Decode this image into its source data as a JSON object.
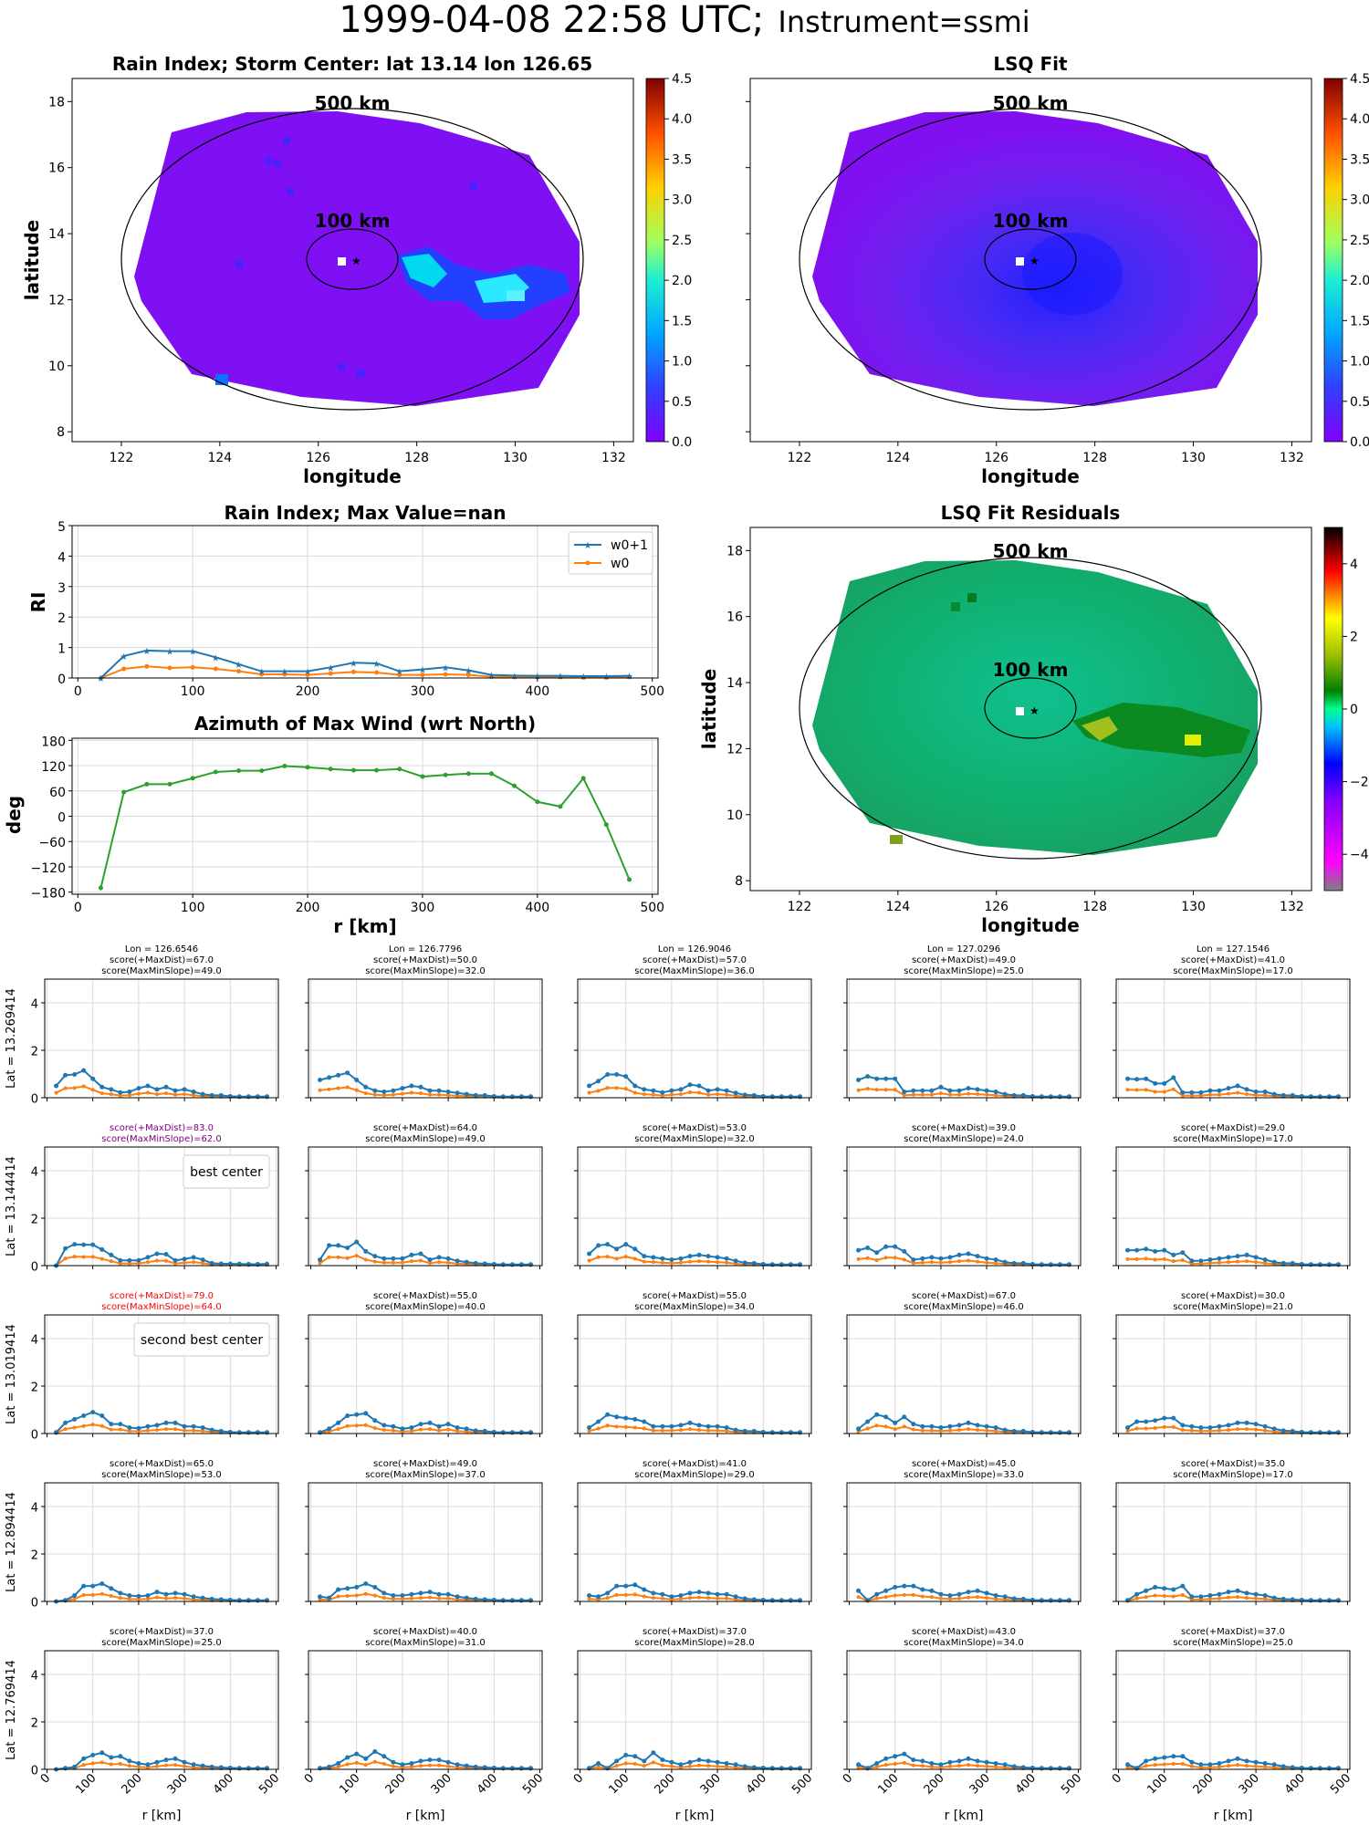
{
  "suptitle": {
    "main": "1999-04-08 22:58 UTC;",
    "sub": "Instrument=ssmi"
  },
  "colors": {
    "w0p1": "#1f77b4",
    "w0": "#ff7f0e",
    "azimuth": "#2ca02c",
    "grid": "#d9d9d9",
    "purple": "#800080",
    "red": "#ff0000"
  },
  "chart_data": [
    {
      "type": "heatmap",
      "title": "Rain Index; Storm Center: lat 13.14 lon 126.65",
      "xlabel": "longitude",
      "ylabel": "latitude",
      "xlim": [
        121,
        132.4
      ],
      "ylim": [
        7.7,
        18.7
      ],
      "xticks": [
        "122",
        "124",
        "126",
        "128",
        "130",
        "132"
      ],
      "yticks": [
        "8",
        "10",
        "12",
        "14",
        "16",
        "18"
      ],
      "colorbar": {
        "min": 0,
        "max": 4.5,
        "ticks": [
          "0.0",
          "0.5",
          "1.0",
          "1.5",
          "2.0",
          "2.5",
          "3.0",
          "3.5",
          "4.0",
          "4.5"
        ],
        "colormap": "rainbow"
      },
      "rings": [
        {
          "label": "500 km",
          "radius_km": 500
        },
        {
          "label": "100 km",
          "radius_km": 100
        }
      ],
      "center": {
        "lat": 13.14,
        "lon": 126.65
      },
      "rain_band": [
        {
          "lon": 127.5,
          "lat": 12.9,
          "value": 1.6
        },
        {
          "lon": 128.0,
          "lat": 12.4,
          "value": 1.3
        },
        {
          "lon": 128.8,
          "lat": 12.0,
          "value": 1.4
        },
        {
          "lon": 129.5,
          "lat": 12.4,
          "value": 1.2
        },
        {
          "lon": 124.3,
          "lat": 9.5,
          "value": 1.0
        }
      ]
    },
    {
      "type": "heatmap",
      "title": "LSQ Fit",
      "xlabel": "longitude",
      "xlim": [
        121,
        132.4
      ],
      "ylim": [
        7.7,
        18.7
      ],
      "xticks": [
        "122",
        "124",
        "126",
        "128",
        "130",
        "132"
      ],
      "colorbar": {
        "min": 0,
        "max": 4.5,
        "ticks": [
          "0.0",
          "0.5",
          "1.0",
          "1.5",
          "2.0",
          "2.5",
          "3.0",
          "3.5",
          "4.0",
          "4.5"
        ],
        "colormap": "rainbow"
      },
      "rings": [
        {
          "label": "500 km",
          "radius_km": 500
        },
        {
          "label": "100 km",
          "radius_km": 100
        }
      ],
      "center": {
        "lat": 13.14,
        "lon": 126.65
      }
    },
    {
      "type": "line",
      "title": "Rain Index; Max Value=nan",
      "ylabel": "RI",
      "xlim": [
        -5,
        505
      ],
      "ylim": [
        0,
        5
      ],
      "xticks": [
        0,
        100,
        200,
        300,
        400,
        500
      ],
      "yticks": [
        0,
        1,
        2,
        3,
        4,
        5
      ],
      "x": [
        20,
        40,
        60,
        80,
        100,
        120,
        140,
        160,
        180,
        200,
        220,
        240,
        260,
        280,
        300,
        320,
        340,
        360,
        380,
        400,
        420,
        440,
        460,
        480
      ],
      "series": [
        {
          "name": "w0+1",
          "marker": "star",
          "values": [
            0.0,
            0.72,
            0.9,
            0.88,
            0.88,
            0.68,
            0.45,
            0.22,
            0.22,
            0.22,
            0.35,
            0.5,
            0.48,
            0.22,
            0.28,
            0.35,
            0.25,
            0.1,
            0.08,
            0.07,
            0.07,
            0.06,
            0.06,
            0.07
          ]
        },
        {
          "name": "w0",
          "marker": "dot",
          "values": [
            0.0,
            0.3,
            0.38,
            0.33,
            0.35,
            0.3,
            0.22,
            0.12,
            0.12,
            0.1,
            0.15,
            0.2,
            0.18,
            0.1,
            0.1,
            0.12,
            0.1,
            0.04,
            0.03,
            0.03,
            0.03,
            0.02,
            0.02,
            0.03
          ]
        }
      ],
      "legend": "top-right"
    },
    {
      "type": "heatmap",
      "title": "LSQ Fit Residuals",
      "xlabel": "longitude",
      "ylabel": "latitude",
      "xlim": [
        121,
        132.4
      ],
      "ylim": [
        7.7,
        18.7
      ],
      "xticks": [
        "122",
        "124",
        "126",
        "128",
        "130",
        "132"
      ],
      "yticks": [
        "8",
        "10",
        "12",
        "14",
        "16",
        "18"
      ],
      "colorbar": {
        "min": -5,
        "max": 5,
        "ticks": [
          "4",
          "2",
          "0",
          "−2",
          "−4"
        ],
        "colormap": "residual"
      },
      "rings": [
        {
          "label": "500 km",
          "radius_km": 500
        },
        {
          "label": "100 km",
          "radius_km": 100
        }
      ],
      "center": {
        "lat": 13.14,
        "lon": 126.65
      }
    },
    {
      "type": "line",
      "title": "Azimuth of Max Wind (wrt North)",
      "xlabel": "r [km]",
      "ylabel": "deg",
      "xlim": [
        -5,
        505
      ],
      "ylim": [
        -185,
        185
      ],
      "xticks": [
        0,
        100,
        200,
        300,
        400,
        500
      ],
      "yticks": [
        "180",
        "120",
        "60",
        "0",
        "−60",
        "−120",
        "−180"
      ],
      "x": [
        20,
        40,
        60,
        80,
        100,
        120,
        140,
        160,
        180,
        200,
        220,
        240,
        260,
        280,
        300,
        320,
        340,
        360,
        380,
        400,
        420,
        440,
        460,
        480
      ],
      "series": [
        {
          "values": [
            -170,
            57,
            76,
            76,
            90,
            105,
            108,
            108,
            119,
            116,
            112,
            109,
            109,
            112,
            94,
            98,
            101,
            101,
            72,
            34,
            23,
            90,
            -20,
            -150
          ]
        }
      ]
    }
  ],
  "grid": {
    "lons": [
      "Lon = 126.6546",
      "Lon = 126.7796",
      "Lon = 126.9046",
      "Lon = 127.0296",
      "Lon = 127.1546"
    ],
    "lats": [
      "Lat = 13.269414",
      "Lat = 13.144414",
      "Lat = 13.019414",
      "Lat = 12.894414",
      "Lat = 12.769414"
    ],
    "xticks": [
      "0",
      "100",
      "200",
      "300",
      "400",
      "500"
    ],
    "yticks": [
      "0",
      "2",
      "4"
    ],
    "xlabel": "r [km]",
    "ylim": [
      0,
      5
    ],
    "best_label": "best center",
    "second_label": "second best center",
    "scores": [
      [
        "score(+MaxDist)=67.0|score(MaxMinSlope)=49.0",
        "score(+MaxDist)=50.0|score(MaxMinSlope)=32.0",
        "score(+MaxDist)=57.0|score(MaxMinSlope)=36.0",
        "score(+MaxDist)=49.0|score(MaxMinSlope)=25.0",
        "score(+MaxDist)=41.0|score(MaxMinSlope)=17.0"
      ],
      [
        "score(+MaxDist)=83.0|score(MaxMinSlope)=62.0",
        "score(+MaxDist)=64.0|score(MaxMinSlope)=49.0",
        "score(+MaxDist)=53.0|score(MaxMinSlope)=32.0",
        "score(+MaxDist)=39.0|score(MaxMinSlope)=24.0",
        "score(+MaxDist)=29.0|score(MaxMinSlope)=17.0"
      ],
      [
        "score(+MaxDist)=79.0|score(MaxMinSlope)=64.0",
        "score(+MaxDist)=55.0|score(MaxMinSlope)=40.0",
        "score(+MaxDist)=55.0|score(MaxMinSlope)=34.0",
        "score(+MaxDist)=67.0|score(MaxMinSlope)=46.0",
        "score(+MaxDist)=30.0|score(MaxMinSlope)=21.0"
      ],
      [
        "score(+MaxDist)=65.0|score(MaxMinSlope)=53.0",
        "score(+MaxDist)=49.0|score(MaxMinSlope)=37.0",
        "score(+MaxDist)=41.0|score(MaxMinSlope)=29.0",
        "score(+MaxDist)=45.0|score(MaxMinSlope)=33.0",
        "score(+MaxDist)=35.0|score(MaxMinSlope)=17.0"
      ],
      [
        "score(+MaxDist)=37.0|score(MaxMinSlope)=25.0",
        "score(+MaxDist)=40.0|score(MaxMinSlope)=31.0",
        "score(+MaxDist)=37.0|score(MaxMinSlope)=28.0",
        "score(+MaxDist)=43.0|score(MaxMinSlope)=34.0",
        "score(+MaxDist)=37.0|score(MaxMinSlope)=25.0"
      ]
    ],
    "x": [
      20,
      40,
      60,
      80,
      100,
      120,
      140,
      160,
      180,
      200,
      220,
      240,
      260,
      280,
      300,
      320,
      340,
      360,
      380,
      400,
      420,
      440,
      460,
      480
    ],
    "w0p1": [
      [
        [
          0.5,
          0.95,
          0.98,
          1.15,
          0.8,
          0.45,
          0.35,
          0.22,
          0.25,
          0.4,
          0.5,
          0.35,
          0.45,
          0.3,
          0.35,
          0.25,
          0.15,
          0.1,
          0.1,
          0.06,
          0.05,
          0.05,
          0.05,
          0.05
        ],
        [
          0.75,
          0.85,
          0.95,
          1.05,
          0.75,
          0.45,
          0.3,
          0.25,
          0.3,
          0.4,
          0.5,
          0.45,
          0.3,
          0.3,
          0.25,
          0.2,
          0.15,
          0.1,
          0.1,
          0.06,
          0.05,
          0.05,
          0.05,
          0.05
        ],
        [
          0.5,
          0.7,
          0.98,
          0.98,
          0.9,
          0.5,
          0.35,
          0.3,
          0.22,
          0.3,
          0.35,
          0.55,
          0.5,
          0.3,
          0.35,
          0.3,
          0.2,
          0.12,
          0.1,
          0.06,
          0.05,
          0.05,
          0.05,
          0.05
        ],
        [
          0.75,
          0.9,
          0.8,
          0.8,
          0.8,
          0.25,
          0.3,
          0.3,
          0.3,
          0.45,
          0.3,
          0.3,
          0.4,
          0.35,
          0.3,
          0.25,
          0.15,
          0.1,
          0.1,
          0.06,
          0.05,
          0.05,
          0.05,
          0.05
        ],
        [
          0.8,
          0.78,
          0.8,
          0.6,
          0.6,
          0.85,
          0.22,
          0.22,
          0.22,
          0.3,
          0.3,
          0.4,
          0.5,
          0.35,
          0.25,
          0.25,
          0.15,
          0.1,
          0.1,
          0.06,
          0.05,
          0.05,
          0.05,
          0.05
        ]
      ],
      [
        [
          0.0,
          0.72,
          0.9,
          0.88,
          0.88,
          0.68,
          0.45,
          0.22,
          0.22,
          0.22,
          0.35,
          0.5,
          0.48,
          0.22,
          0.28,
          0.35,
          0.25,
          0.1,
          0.08,
          0.07,
          0.07,
          0.06,
          0.06,
          0.07
        ],
        [
          0.25,
          0.85,
          0.85,
          0.75,
          1.0,
          0.6,
          0.4,
          0.3,
          0.3,
          0.3,
          0.45,
          0.5,
          0.25,
          0.35,
          0.3,
          0.2,
          0.15,
          0.1,
          0.08,
          0.06,
          0.05,
          0.05,
          0.05,
          0.05
        ],
        [
          0.5,
          0.85,
          0.9,
          0.7,
          0.9,
          0.7,
          0.4,
          0.35,
          0.3,
          0.25,
          0.3,
          0.4,
          0.45,
          0.4,
          0.35,
          0.3,
          0.2,
          0.12,
          0.1,
          0.06,
          0.05,
          0.05,
          0.05,
          0.05
        ],
        [
          0.65,
          0.75,
          0.55,
          0.8,
          0.8,
          0.6,
          0.25,
          0.3,
          0.35,
          0.3,
          0.35,
          0.45,
          0.5,
          0.4,
          0.3,
          0.25,
          0.15,
          0.1,
          0.1,
          0.06,
          0.05,
          0.05,
          0.05,
          0.05
        ],
        [
          0.65,
          0.65,
          0.7,
          0.6,
          0.65,
          0.45,
          0.55,
          0.2,
          0.2,
          0.25,
          0.3,
          0.35,
          0.4,
          0.45,
          0.35,
          0.25,
          0.15,
          0.1,
          0.1,
          0.06,
          0.05,
          0.05,
          0.05,
          0.05
        ]
      ],
      [
        [
          0.05,
          0.45,
          0.6,
          0.75,
          0.9,
          0.75,
          0.4,
          0.4,
          0.25,
          0.22,
          0.3,
          0.35,
          0.45,
          0.45,
          0.3,
          0.3,
          0.25,
          0.15,
          0.1,
          0.06,
          0.05,
          0.05,
          0.05,
          0.05
        ],
        [
          0.05,
          0.2,
          0.45,
          0.75,
          0.8,
          0.85,
          0.55,
          0.35,
          0.3,
          0.2,
          0.25,
          0.4,
          0.45,
          0.3,
          0.4,
          0.25,
          0.2,
          0.12,
          0.1,
          0.06,
          0.05,
          0.05,
          0.05,
          0.05
        ],
        [
          0.25,
          0.5,
          0.8,
          0.7,
          0.65,
          0.6,
          0.5,
          0.3,
          0.3,
          0.3,
          0.35,
          0.45,
          0.35,
          0.3,
          0.3,
          0.25,
          0.15,
          0.1,
          0.1,
          0.06,
          0.05,
          0.05,
          0.05,
          0.05
        ],
        [
          0.2,
          0.5,
          0.8,
          0.7,
          0.45,
          0.7,
          0.4,
          0.3,
          0.3,
          0.25,
          0.3,
          0.35,
          0.45,
          0.35,
          0.3,
          0.25,
          0.15,
          0.1,
          0.1,
          0.06,
          0.05,
          0.05,
          0.05,
          0.05
        ],
        [
          0.25,
          0.5,
          0.5,
          0.55,
          0.65,
          0.65,
          0.35,
          0.3,
          0.25,
          0.25,
          0.3,
          0.35,
          0.45,
          0.45,
          0.4,
          0.3,
          0.2,
          0.12,
          0.1,
          0.06,
          0.05,
          0.05,
          0.05,
          0.05
        ]
      ],
      [
        [
          0.0,
          0.05,
          0.25,
          0.65,
          0.65,
          0.75,
          0.55,
          0.35,
          0.25,
          0.22,
          0.25,
          0.4,
          0.3,
          0.35,
          0.3,
          0.2,
          0.15,
          0.1,
          0.08,
          0.06,
          0.05,
          0.05,
          0.05,
          0.05
        ],
        [
          0.2,
          0.15,
          0.5,
          0.55,
          0.6,
          0.75,
          0.6,
          0.35,
          0.25,
          0.25,
          0.3,
          0.35,
          0.4,
          0.3,
          0.3,
          0.2,
          0.15,
          0.1,
          0.08,
          0.06,
          0.05,
          0.05,
          0.05,
          0.05
        ],
        [
          0.25,
          0.2,
          0.35,
          0.65,
          0.65,
          0.7,
          0.5,
          0.35,
          0.3,
          0.2,
          0.25,
          0.35,
          0.4,
          0.35,
          0.3,
          0.3,
          0.2,
          0.12,
          0.08,
          0.06,
          0.05,
          0.05,
          0.05,
          0.05
        ],
        [
          0.45,
          0.05,
          0.3,
          0.45,
          0.6,
          0.65,
          0.65,
          0.5,
          0.45,
          0.3,
          0.25,
          0.3,
          0.4,
          0.45,
          0.35,
          0.25,
          0.2,
          0.12,
          0.1,
          0.06,
          0.05,
          0.05,
          0.05,
          0.05
        ],
        [
          0.05,
          0.3,
          0.45,
          0.6,
          0.55,
          0.5,
          0.65,
          0.2,
          0.2,
          0.25,
          0.3,
          0.4,
          0.45,
          0.35,
          0.3,
          0.25,
          0.15,
          0.1,
          0.08,
          0.06,
          0.05,
          0.05,
          0.05,
          0.05
        ]
      ],
      [
        [
          0.0,
          0.05,
          0.1,
          0.45,
          0.6,
          0.7,
          0.5,
          0.55,
          0.35,
          0.25,
          0.2,
          0.3,
          0.4,
          0.45,
          0.3,
          0.2,
          0.15,
          0.1,
          0.08,
          0.06,
          0.05,
          0.05,
          0.05,
          0.05
        ],
        [
          0.05,
          0.1,
          0.25,
          0.5,
          0.65,
          0.45,
          0.75,
          0.55,
          0.3,
          0.2,
          0.25,
          0.35,
          0.4,
          0.4,
          0.3,
          0.2,
          0.15,
          0.1,
          0.08,
          0.06,
          0.05,
          0.05,
          0.05,
          0.05
        ],
        [
          0.05,
          0.25,
          0.05,
          0.35,
          0.6,
          0.55,
          0.35,
          0.7,
          0.4,
          0.3,
          0.2,
          0.3,
          0.4,
          0.35,
          0.3,
          0.25,
          0.2,
          0.12,
          0.08,
          0.06,
          0.05,
          0.05,
          0.05,
          0.05
        ],
        [
          0.2,
          0.05,
          0.25,
          0.45,
          0.55,
          0.65,
          0.4,
          0.35,
          0.25,
          0.2,
          0.3,
          0.35,
          0.45,
          0.35,
          0.3,
          0.25,
          0.2,
          0.12,
          0.08,
          0.06,
          0.05,
          0.05,
          0.05,
          0.05
        ],
        [
          0.2,
          0.05,
          0.35,
          0.45,
          0.5,
          0.55,
          0.55,
          0.3,
          0.2,
          0.2,
          0.25,
          0.35,
          0.45,
          0.35,
          0.3,
          0.25,
          0.2,
          0.12,
          0.08,
          0.06,
          0.05,
          0.05,
          0.05,
          0.05
        ]
      ]
    ]
  }
}
